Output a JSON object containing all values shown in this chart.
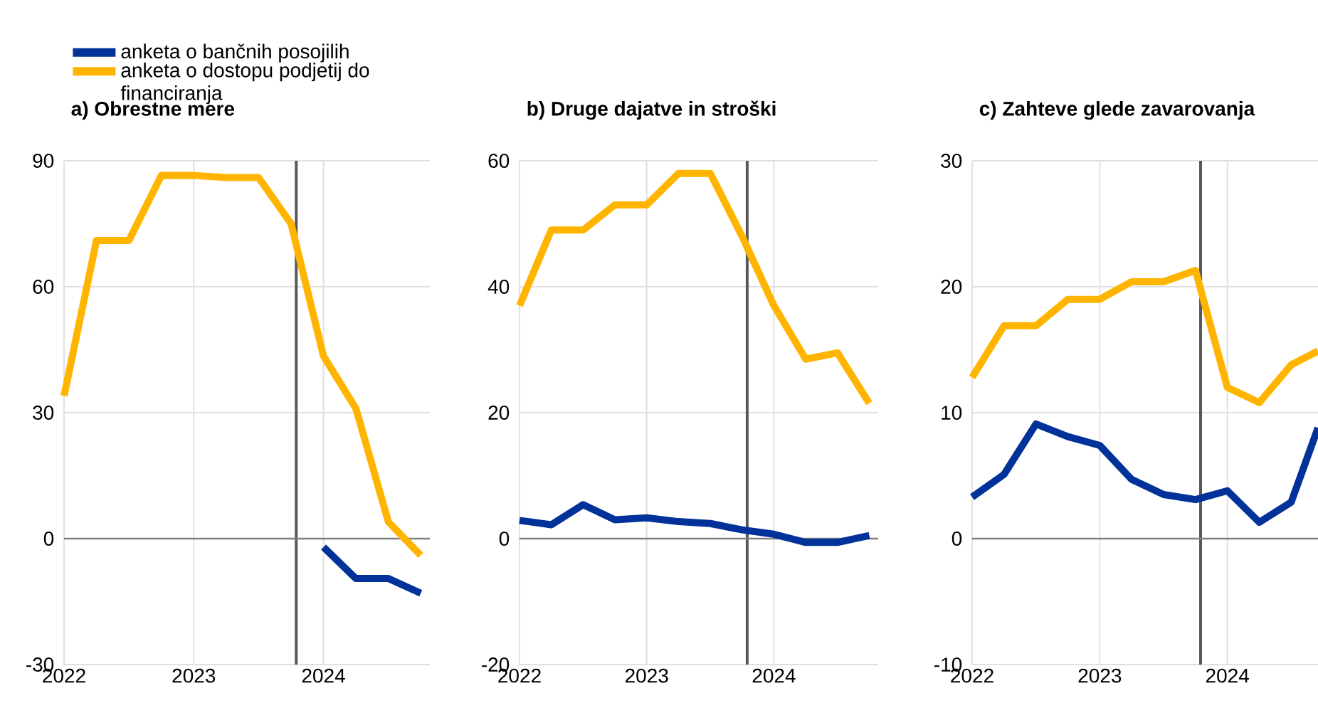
{
  "chart_data": [
    {
      "type": "line",
      "title": "a) Obrestne mere",
      "x": [
        2022,
        2022.25,
        2022.5,
        2022.75,
        2023,
        2023.25,
        2023.5,
        2023.75,
        2024,
        2024.25,
        2024.5,
        2024.75
      ],
      "xlim": [
        2022,
        2024.82
      ],
      "xticks": [
        2022,
        2023,
        2024
      ],
      "ylim": [
        -30,
        90
      ],
      "yticks": [
        -30,
        0,
        30,
        60,
        90
      ],
      "grid": true,
      "legend": "top left",
      "series": [
        {
          "name": "anketa o bančnih posojilih",
          "color": "#003299",
          "values": [
            null,
            null,
            null,
            null,
            null,
            null,
            null,
            null,
            -2,
            -9.5,
            -9.5,
            -13
          ]
        },
        {
          "name": "anketa o dostopu podjetij do financiranja",
          "color": "#ffb400",
          "values": [
            34,
            71,
            71,
            86.5,
            86.5,
            86,
            86,
            75,
            43.5,
            31,
            4,
            -4
          ]
        }
      ],
      "ref_lines": [
        {
          "axis": "x",
          "value": 2023.79,
          "color": "#595959"
        },
        {
          "axis": "y",
          "value": 0,
          "color": "#808080"
        }
      ]
    },
    {
      "type": "line",
      "title": "b) Druge dajatve in stroški",
      "x": [
        2022,
        2022.25,
        2022.5,
        2022.75,
        2023,
        2023.25,
        2023.5,
        2023.75,
        2024,
        2024.25,
        2024.5,
        2024.75
      ],
      "xlim": [
        2022,
        2024.82
      ],
      "xticks": [
        2022,
        2023,
        2024
      ],
      "ylim": [
        -20,
        60
      ],
      "yticks": [
        -20,
        0,
        20,
        40,
        60
      ],
      "grid": true,
      "series": [
        {
          "color": "#003299",
          "values": [
            2.9,
            2.2,
            5.4,
            3,
            3.3,
            2.7,
            2.4,
            1.4,
            0.7,
            -0.6,
            -0.6,
            0.5
          ]
        },
        {
          "color": "#ffb400",
          "values": [
            37,
            49,
            49,
            53,
            53,
            58,
            58,
            48,
            37,
            28.5,
            29.5,
            21.5
          ]
        }
      ],
      "ref_lines": [
        {
          "axis": "x",
          "value": 2023.79,
          "color": "#595959"
        },
        {
          "axis": "y",
          "value": 0,
          "color": "#808080"
        }
      ]
    },
    {
      "type": "line",
      "title": "c) Zahteve glede zavarovanja",
      "x": [
        2022,
        2022.25,
        2022.5,
        2022.75,
        2023,
        2023.25,
        2023.5,
        2023.75,
        2024,
        2024.25,
        2024.5,
        2024.71
      ],
      "xlim": [
        2022,
        2024.71
      ],
      "xticks": [
        2022,
        2023,
        2024
      ],
      "ylim": [
        -10,
        30
      ],
      "yticks": [
        -10,
        0,
        10,
        20,
        30
      ],
      "grid": true,
      "series": [
        {
          "color": "#003299",
          "values": [
            3.3,
            5.1,
            9.1,
            8.1,
            7.4,
            4.7,
            3.5,
            3.1,
            3.8,
            1.3,
            2.9,
            8.8
          ]
        },
        {
          "color": "#ffb400",
          "values": [
            12.8,
            16.9,
            16.9,
            19,
            19,
            20.4,
            20.4,
            21.3,
            12,
            10.8,
            13.8,
            14.9
          ]
        }
      ],
      "ref_lines": [
        {
          "axis": "x",
          "value": 2023.79,
          "color": "#595959"
        },
        {
          "axis": "y",
          "value": 0,
          "color": "#808080"
        }
      ]
    }
  ]
}
